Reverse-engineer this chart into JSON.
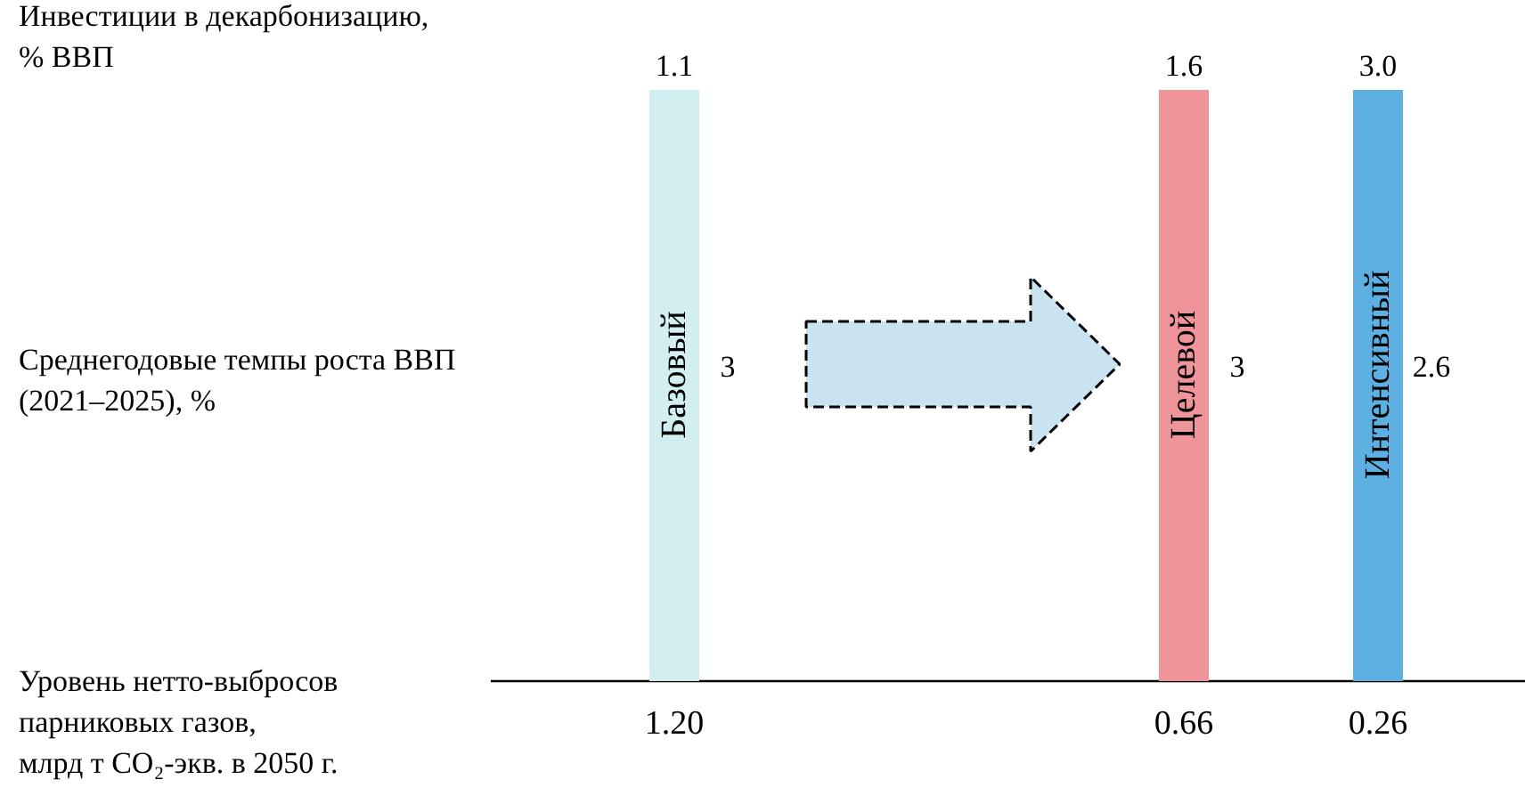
{
  "chart_data": {
    "type": "other",
    "data_labels": true,
    "categories": [
      "Базовый",
      "Целевой",
      "Интенсивный"
    ],
    "colors": [
      "#d3eef0",
      "#ef959a",
      "#5eb0e2"
    ],
    "series": [
      {
        "name": "Инвестиции в декарбонизацию,\n% ВВП",
        "values": [
          1.1,
          1.6,
          3.0
        ],
        "value_labels": [
          "1.1",
          "1.6",
          "3.0"
        ]
      },
      {
        "name": "Среднегодовые темпы роста ВВП\n(2021–2025), %",
        "values": [
          3,
          3,
          2.6
        ]
      },
      {
        "name": "Уровень нетто-выбросов\nпарниковых газов,\nмлрд т CO₂-экв. в 2050 г.",
        "values": [
          1.2,
          0.66,
          0.26
        ],
        "value_labels": [
          "1.20",
          "0.66",
          "0.26"
        ]
      }
    ]
  }
}
